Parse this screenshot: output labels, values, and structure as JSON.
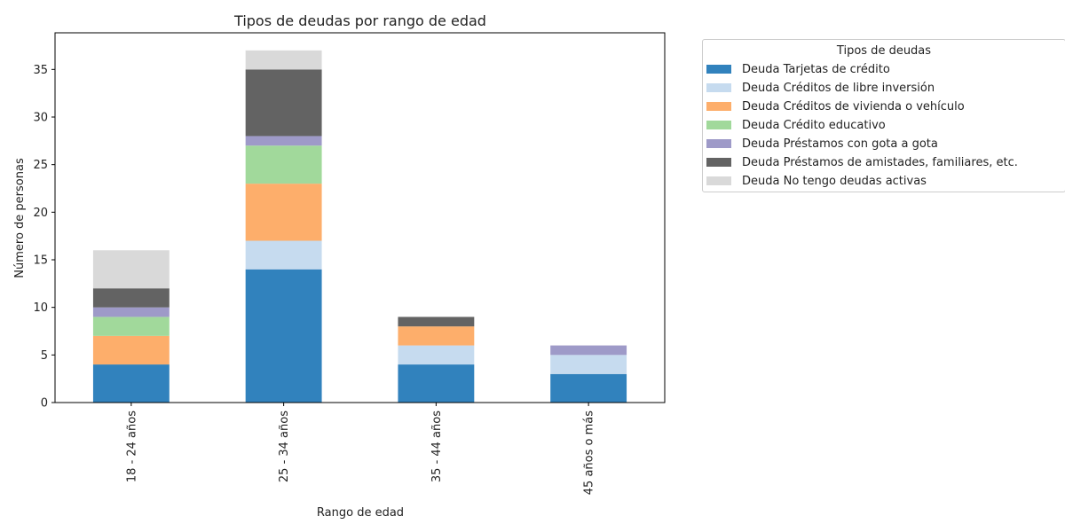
{
  "chart_data": {
    "type": "bar",
    "stacked": true,
    "title": "Tipos de deudas por rango de edad",
    "xlabel": "Rango de edad",
    "ylabel": "Número de personas",
    "ylim": [
      0,
      38.85
    ],
    "yticks": [
      0,
      5,
      10,
      15,
      20,
      25,
      30,
      35
    ],
    "categories": [
      "18 - 24 años",
      "25 - 34 años",
      "35 - 44 años",
      "45 años o más"
    ],
    "legend_title": "Tipos de deudas",
    "legend_position": "outside-top-right",
    "grid": false,
    "series": [
      {
        "name": "Deuda Tarjetas de crédito",
        "color": "#3182bd",
        "values": [
          4,
          14,
          4,
          3
        ]
      },
      {
        "name": "Deuda Créditos de libre inversión",
        "color": "#c6dbef",
        "values": [
          0,
          3,
          2,
          2
        ]
      },
      {
        "name": "Deuda Créditos de vivienda o vehículo",
        "color": "#fdae6b",
        "values": [
          3,
          6,
          2,
          0
        ]
      },
      {
        "name": "Deuda Crédito educativo",
        "color": "#a1d99b",
        "values": [
          2,
          4,
          0,
          0
        ]
      },
      {
        "name": "Deuda Préstamos con gota a gota",
        "color": "#9e9ac8",
        "values": [
          1,
          1,
          0,
          1
        ]
      },
      {
        "name": "Deuda Préstamos de amistades, familiares, etc.",
        "color": "#636363",
        "values": [
          2,
          7,
          1,
          0
        ]
      },
      {
        "name": "Deuda No tengo deudas activas",
        "color": "#d9d9d9",
        "values": [
          4,
          2,
          0,
          0
        ]
      }
    ]
  }
}
